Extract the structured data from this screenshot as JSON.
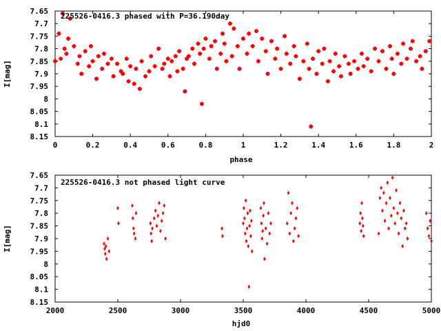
{
  "colors": {
    "points": "#ff0000",
    "axes": "#000000",
    "background": "#ffffff"
  },
  "chart_data": [
    {
      "type": "scatter",
      "title": "225526-0416.3 phased with P=36.190day",
      "xlabel": "phase",
      "ylabel": "I[mag]",
      "xlim": [
        0,
        2
      ],
      "ylim": [
        8.15,
        7.65
      ],
      "y_inverted": true,
      "grid": false,
      "marker": "star",
      "xticks": [
        "0",
        "0.2",
        "0.4",
        "0.6",
        "0.8",
        "1",
        "1.2",
        "1.4",
        "1.6",
        "1.8",
        "2"
      ],
      "yticks": [
        "7.65",
        "7.7",
        "7.75",
        "7.8",
        "7.85",
        "7.9",
        "7.95",
        "8",
        "8.05",
        "8.1",
        "8.15"
      ],
      "x": [
        0.0,
        0.02,
        0.03,
        0.04,
        0.05,
        0.06,
        0.07,
        0.08,
        0.1,
        0.12,
        0.13,
        0.14,
        0.16,
        0.18,
        0.19,
        0.2,
        0.22,
        0.23,
        0.25,
        0.26,
        0.28,
        0.3,
        0.31,
        0.33,
        0.35,
        0.36,
        0.38,
        0.39,
        0.4,
        0.42,
        0.43,
        0.45,
        0.46,
        0.48,
        0.5,
        0.51,
        0.53,
        0.55,
        0.57,
        0.58,
        0.6,
        0.61,
        0.62,
        0.64,
        0.65,
        0.66,
        0.68,
        0.69,
        0.7,
        0.71,
        0.73,
        0.74,
        0.76,
        0.77,
        0.78,
        0.79,
        0.8,
        0.82,
        0.83,
        0.85,
        0.86,
        0.88,
        0.89,
        0.9,
        0.91,
        0.93,
        0.94,
        0.95,
        0.97,
        0.98,
        1.0,
        1.02,
        1.03,
        1.05,
        1.07,
        1.08,
        1.1,
        1.12,
        1.13,
        1.15,
        1.17,
        1.18,
        1.2,
        1.22,
        1.23,
        1.25,
        1.27,
        1.28,
        1.3,
        1.32,
        1.34,
        1.35,
        1.36,
        1.37,
        1.39,
        1.4,
        1.42,
        1.43,
        1.45,
        1.46,
        1.48,
        1.49,
        1.51,
        1.52,
        1.54,
        1.56,
        1.57,
        1.59,
        1.61,
        1.63,
        1.64,
        1.66,
        1.68,
        1.7,
        1.72,
        1.74,
        1.76,
        1.78,
        1.79,
        1.8,
        1.82,
        1.84,
        1.85,
        1.87,
        1.89,
        1.9,
        1.92,
        1.94,
        1.95,
        1.97,
        1.99
      ],
      "y": [
        7.85,
        7.74,
        7.84,
        7.66,
        7.8,
        7.82,
        7.76,
        7.68,
        7.79,
        7.86,
        7.83,
        7.9,
        7.81,
        7.87,
        7.79,
        7.85,
        7.92,
        7.83,
        7.88,
        7.82,
        7.86,
        7.84,
        7.91,
        7.86,
        7.89,
        7.9,
        7.84,
        7.93,
        7.87,
        7.94,
        7.88,
        7.96,
        7.85,
        7.91,
        7.89,
        7.83,
        7.87,
        7.8,
        7.88,
        7.86,
        7.84,
        7.91,
        7.85,
        7.83,
        7.89,
        7.81,
        7.88,
        7.97,
        7.84,
        7.83,
        7.8,
        7.86,
        7.78,
        7.82,
        8.02,
        7.8,
        7.76,
        7.84,
        7.79,
        7.77,
        7.88,
        7.82,
        7.74,
        7.78,
        7.85,
        7.7,
        7.83,
        7.72,
        7.79,
        7.88,
        7.76,
        7.82,
        7.74,
        7.79,
        7.73,
        7.85,
        7.76,
        7.81,
        7.9,
        7.77,
        7.84,
        7.8,
        7.88,
        7.75,
        7.82,
        7.86,
        7.79,
        7.83,
        7.92,
        7.85,
        7.78,
        7.88,
        8.11,
        7.84,
        7.9,
        7.81,
        7.86,
        7.8,
        7.93,
        7.85,
        7.89,
        7.82,
        7.87,
        7.91,
        7.83,
        7.86,
        7.9,
        7.85,
        7.88,
        7.82,
        7.87,
        7.84,
        7.89,
        7.8,
        7.85,
        7.81,
        7.88,
        7.79,
        7.84,
        7.9,
        7.82,
        7.86,
        7.78,
        7.84,
        7.8,
        7.77,
        7.85,
        7.83,
        7.88,
        7.81,
        7.77
      ]
    },
    {
      "type": "scatter",
      "title": "225526-0416.3 not phased light curve",
      "xlabel": "hjd0",
      "ylabel": "I[mag]",
      "xlim": [
        2000,
        5000
      ],
      "ylim": [
        8.15,
        7.65
      ],
      "y_inverted": true,
      "grid": false,
      "marker": "diamond",
      "xticks": [
        "2000",
        "2500",
        "3000",
        "3500",
        "4000",
        "4500",
        "5000"
      ],
      "yticks": [
        "7.65",
        "7.7",
        "7.75",
        "7.8",
        "7.85",
        "7.9",
        "7.95",
        "8",
        "8.05",
        "8.1",
        "8.15"
      ],
      "x": [
        2390,
        2395,
        2400,
        2405,
        2410,
        2420,
        2430,
        2500,
        2505,
        2615,
        2620,
        2625,
        2630,
        2640,
        2645,
        2760,
        2765,
        2770,
        2775,
        2790,
        2800,
        2810,
        2820,
        2830,
        2840,
        2850,
        2860,
        2870,
        2880,
        3330,
        3335,
        3500,
        3505,
        3510,
        3515,
        3520,
        3525,
        3530,
        3535,
        3540,
        3545,
        3550,
        3555,
        3560,
        3565,
        3570,
        3640,
        3645,
        3650,
        3655,
        3660,
        3665,
        3670,
        3680,
        3690,
        3700,
        3710,
        3720,
        3850,
        3860,
        3870,
        3880,
        3890,
        3900,
        3910,
        3920,
        3930,
        3940,
        4430,
        4435,
        4440,
        4445,
        4450,
        4455,
        4460,
        4580,
        4590,
        4600,
        4610,
        4620,
        4630,
        4640,
        4650,
        4660,
        4670,
        4680,
        4690,
        4700,
        4710,
        4720,
        4730,
        4740,
        4750,
        4760,
        4770,
        4780,
        4790,
        4800,
        4810,
        4960,
        4970,
        4980,
        4990,
        5000
      ],
      "y": [
        7.92,
        7.94,
        7.96,
        7.93,
        7.98,
        7.9,
        7.95,
        7.78,
        7.84,
        7.77,
        7.82,
        7.86,
        7.88,
        7.9,
        7.8,
        7.84,
        7.88,
        7.91,
        7.86,
        7.82,
        7.79,
        7.85,
        7.81,
        7.76,
        7.87,
        7.83,
        7.8,
        7.77,
        7.9,
        7.86,
        7.89,
        7.84,
        7.78,
        7.82,
        7.88,
        7.75,
        7.91,
        7.86,
        7.8,
        7.93,
        8.09,
        7.85,
        7.79,
        7.89,
        7.83,
        7.95,
        7.78,
        7.84,
        7.9,
        7.87,
        7.81,
        7.76,
        7.98,
        7.86,
        7.92,
        7.8,
        7.88,
        7.84,
        7.84,
        7.72,
        7.88,
        7.8,
        7.76,
        7.91,
        7.86,
        7.82,
        7.78,
        7.89,
        7.84,
        7.8,
        7.87,
        7.76,
        7.82,
        7.85,
        7.89,
        7.88,
        7.74,
        7.7,
        7.79,
        7.72,
        7.83,
        7.76,
        7.68,
        7.86,
        7.74,
        7.81,
        7.66,
        7.78,
        7.84,
        7.71,
        7.8,
        7.88,
        7.76,
        7.82,
        7.93,
        7.79,
        7.86,
        7.84,
        7.9,
        7.8,
        7.86,
        7.89,
        7.83,
        7.91
      ]
    }
  ]
}
